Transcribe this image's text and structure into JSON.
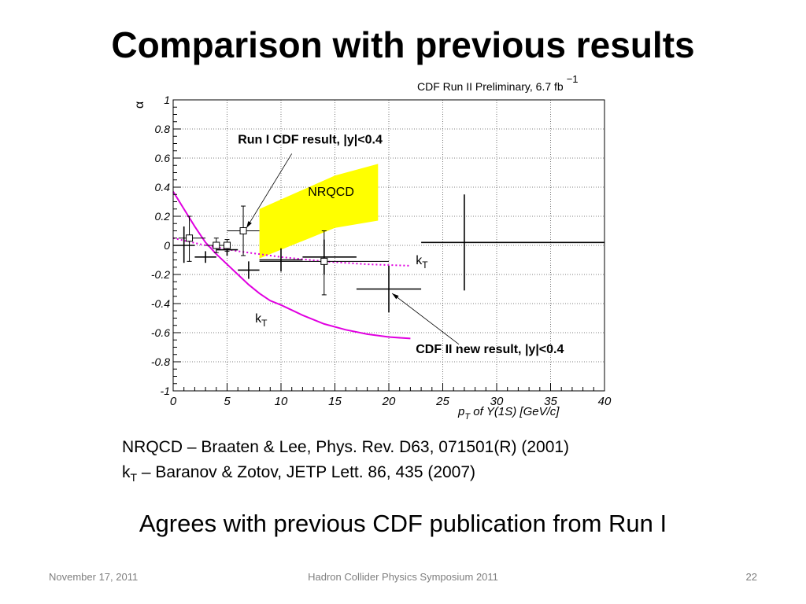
{
  "slide": {
    "title": "Comparison with previous results",
    "references": {
      "nrqcd": "NRQCD – Braaten & Lee, Phys. Rev. D63, 071501(R) (2001)",
      "kt_prefix": "k",
      "kt_sub": "T",
      "kt_rest": " – Baranov & Zotov, JETP Lett. 86, 435 (2007)"
    },
    "conclusion": "Agrees with previous CDF publication from Run I",
    "footer": {
      "date": "November 17, 2011",
      "event": "Hadron Collider Physics Symposium  2011",
      "page": "22"
    }
  },
  "chart_data": {
    "type": "scatter",
    "header": "CDF Run II Preliminary,  6.7 fb",
    "header_sup": "−1",
    "ylabel": "α",
    "xlabel": "p",
    "xlabel_sub": "T",
    "xlabel_rest": " of Υ(1S) [GeV/c]",
    "xlim": [
      0,
      40
    ],
    "ylim": [
      -1,
      1
    ],
    "xticks": [
      0,
      5,
      10,
      15,
      20,
      25,
      30,
      35,
      40
    ],
    "yticks": [
      -1,
      -0.8,
      -0.6,
      -0.4,
      -0.2,
      0,
      0.2,
      0.4,
      0.6,
      0.8,
      1
    ],
    "ytick_labels": [
      "-1",
      "-0.8",
      "-0.6",
      "-0.4",
      "-0.2",
      "0",
      "0.2",
      "0.4",
      "0.6",
      "0.8",
      "1"
    ],
    "xtick_labels": [
      "0",
      "5",
      "10",
      "15",
      "20",
      "25",
      "30",
      "35",
      "40"
    ],
    "grid": true,
    "series": [
      {
        "name": "CDF II new result, |y|<0.4",
        "marker": "cross",
        "color": "#000000",
        "points": [
          {
            "x": 1,
            "y": 0.0,
            "xlo": 0,
            "xhi": 2,
            "ylo": -0.12,
            "yhi": 0.13
          },
          {
            "x": 3,
            "y": -0.08,
            "xlo": 2,
            "xhi": 4,
            "ylo": -0.12,
            "yhi": -0.04
          },
          {
            "x": 5,
            "y": -0.03,
            "xlo": 4,
            "xhi": 6,
            "ylo": -0.07,
            "yhi": 0.01
          },
          {
            "x": 7,
            "y": -0.17,
            "xlo": 6,
            "xhi": 8,
            "ylo": -0.23,
            "yhi": -0.11
          },
          {
            "x": 10,
            "y": -0.1,
            "xlo": 8,
            "xhi": 12,
            "ylo": -0.18,
            "yhi": -0.02
          },
          {
            "x": 14,
            "y": -0.08,
            "xlo": 12,
            "xhi": 17,
            "ylo": -0.2,
            "yhi": 0.04
          },
          {
            "x": 20,
            "y": -0.3,
            "xlo": 17,
            "xhi": 23,
            "ylo": -0.46,
            "yhi": -0.14
          },
          {
            "x": 27,
            "y": 0.02,
            "xlo": 23,
            "xhi": 40,
            "ylo": -0.31,
            "yhi": 0.35
          }
        ]
      },
      {
        "name": "Run I CDF result, |y|<0.4",
        "marker": "open-square",
        "color": "#000000",
        "points": [
          {
            "x": 1.5,
            "y": 0.05,
            "xlo": 0.5,
            "xhi": 3,
            "ylo": -0.11,
            "yhi": 0.2
          },
          {
            "x": 4,
            "y": 0.0,
            "xlo": 3,
            "xhi": 5,
            "ylo": -0.05,
            "yhi": 0.05
          },
          {
            "x": 5,
            "y": 0.0,
            "xlo": 5,
            "xhi": 5,
            "ylo": -0.04,
            "yhi": 0.04
          },
          {
            "x": 6.5,
            "y": 0.1,
            "xlo": 5,
            "xhi": 8,
            "ylo": -0.07,
            "yhi": 0.27
          },
          {
            "x": 14,
            "y": -0.11,
            "xlo": 8,
            "xhi": 20,
            "ylo": -0.34,
            "yhi": 0.1
          }
        ]
      }
    ],
    "bands": [
      {
        "name": "NRQCD",
        "color": "#ffff00",
        "upper": [
          {
            "x": 8,
            "y": 0.25
          },
          {
            "x": 15,
            "y": 0.48
          },
          {
            "x": 19,
            "y": 0.56
          }
        ],
        "lower": [
          {
            "x": 8,
            "y": -0.09
          },
          {
            "x": 15,
            "y": 0.12
          },
          {
            "x": 19,
            "y": 0.17
          }
        ]
      }
    ],
    "curves": [
      {
        "name": "kT",
        "name_sub": "T",
        "style": "solid",
        "color": "#e000e0",
        "points": [
          {
            "x": 0,
            "y": 0.37
          },
          {
            "x": 1,
            "y": 0.25
          },
          {
            "x": 2,
            "y": 0.13
          },
          {
            "x": 3,
            "y": 0.02
          },
          {
            "x": 4,
            "y": -0.06
          },
          {
            "x": 5,
            "y": -0.13
          },
          {
            "x": 6,
            "y": -0.2
          },
          {
            "x": 7,
            "y": -0.27
          },
          {
            "x": 8,
            "y": -0.33
          },
          {
            "x": 9,
            "y": -0.38
          },
          {
            "x": 10,
            "y": -0.41
          },
          {
            "x": 12,
            "y": -0.48
          },
          {
            "x": 14,
            "y": -0.54
          },
          {
            "x": 16,
            "y": -0.58
          },
          {
            "x": 18,
            "y": -0.61
          },
          {
            "x": 20,
            "y": -0.63
          },
          {
            "x": 22,
            "y": -0.64
          }
        ]
      },
      {
        "name": "kT",
        "name_sub": "T",
        "style": "dotted",
        "color": "#e000e0",
        "points": [
          {
            "x": 0,
            "y": 0.05
          },
          {
            "x": 3,
            "y": 0.0
          },
          {
            "x": 6,
            "y": -0.04
          },
          {
            "x": 10,
            "y": -0.08
          },
          {
            "x": 14,
            "y": -0.11
          },
          {
            "x": 18,
            "y": -0.13
          },
          {
            "x": 22,
            "y": -0.14
          }
        ]
      }
    ],
    "annotations": [
      {
        "text": "Run I CDF result, |y|<0.4",
        "bold": true,
        "tx": 6,
        "ty": 0.7,
        "arrow_from": {
          "x": 11,
          "y": 0.63
        },
        "arrow_to": {
          "x": 6.8,
          "y": 0.12
        }
      },
      {
        "text": "NRQCD",
        "bold": false,
        "tx": 12.5,
        "ty": 0.34
      },
      {
        "text": "k",
        "sub": "T",
        "bold": false,
        "tx": 22.5,
        "ty": -0.13
      },
      {
        "text": "k",
        "sub": "T",
        "bold": false,
        "tx": 7.6,
        "ty": -0.53
      },
      {
        "text": "CDF II new result, |y|<0.4",
        "bold": true,
        "tx": 22.5,
        "ty": -0.74,
        "arrow_from": {
          "x": 26.5,
          "y": -0.68
        },
        "arrow_to": {
          "x": 20.3,
          "y": -0.33
        }
      }
    ]
  }
}
